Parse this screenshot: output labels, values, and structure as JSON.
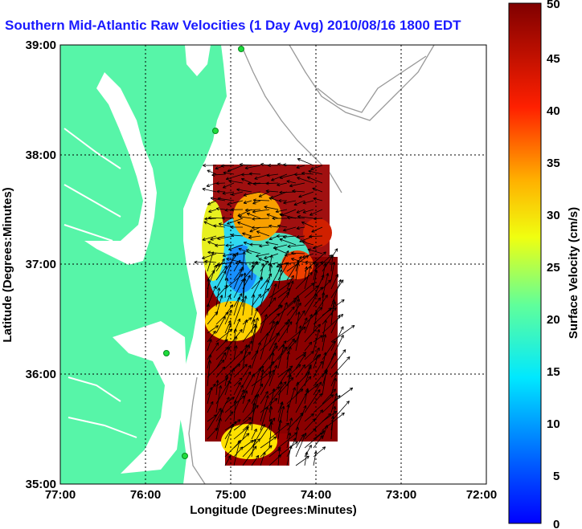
{
  "title": "Southern Mid-Atlantic Raw Velocities (1 Day Avg) 2010/08/16 1800 EDT",
  "map": {
    "xlabel": "Longitude (Degrees:Minutes)",
    "ylabel": "Latitude (Degrees:Minutes)",
    "lon_range": [
      -77,
      -72
    ],
    "lat_range": [
      35,
      39
    ],
    "x_ticks": [
      "77:00",
      "76:00",
      "75:00",
      "74:00",
      "73:00",
      "72:00"
    ],
    "y_ticks": [
      "39:00",
      "38:00",
      "37:00",
      "36:00",
      "35:00"
    ],
    "grid": "dotted",
    "land_color": "#57f5a8",
    "station_color": "#1edc3c"
  },
  "colorbar": {
    "label": "Surface Velocity (cm/s)",
    "range": [
      0,
      50
    ],
    "ticks": [
      "50",
      "45",
      "40",
      "35",
      "30",
      "25",
      "20",
      "15",
      "10",
      "5",
      "0"
    ],
    "colormap": "jet"
  }
}
